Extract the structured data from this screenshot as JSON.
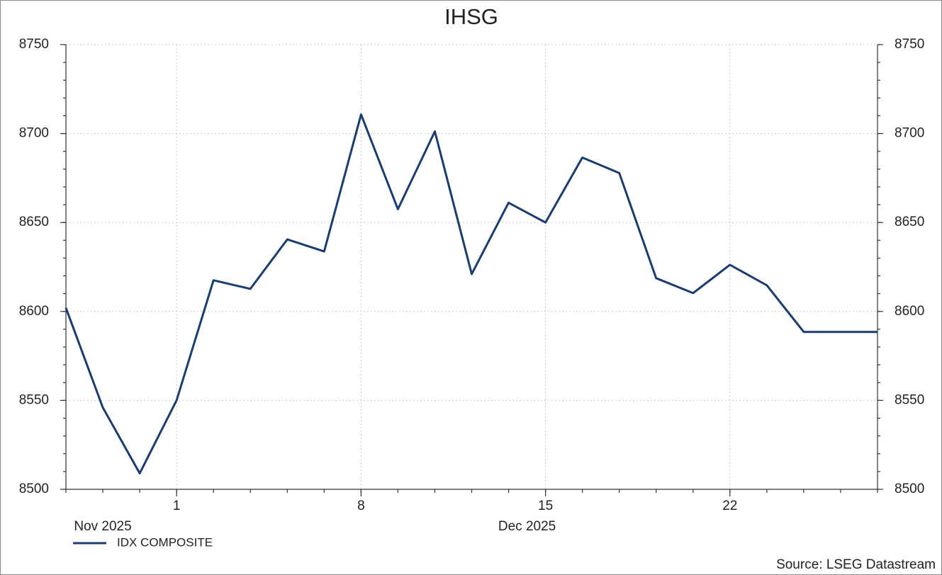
{
  "chart_data": {
    "type": "line",
    "title": "IHSG",
    "categories": [
      null,
      null,
      null,
      "1",
      null,
      null,
      null,
      null,
      "8",
      null,
      null,
      null,
      null,
      "15",
      null,
      null,
      null,
      null,
      "22",
      null,
      null,
      null,
      null
    ],
    "month_labels": [
      "Nov 2025",
      "Dec 2025"
    ],
    "series": [
      {
        "name": "IDX COMPOSITE",
        "color": "#1b3c6e",
        "values": [
          8602,
          8546,
          8509,
          8550,
          8617.5,
          8612.7,
          8640.5,
          8633.7,
          8710.7,
          8657.5,
          8701.2,
          8621,
          8661.1,
          8650,
          8686.5,
          8677.8,
          8618.7,
          8610.3,
          8626.2,
          8614.7,
          8588.5,
          8588.5,
          8588.5
        ]
      }
    ],
    "ylim": [
      8500,
      8750
    ],
    "yticks": [
      8500,
      8550,
      8600,
      8650,
      8700,
      8750
    ],
    "grid": true,
    "source": "Source: LSEG Datastream"
  }
}
